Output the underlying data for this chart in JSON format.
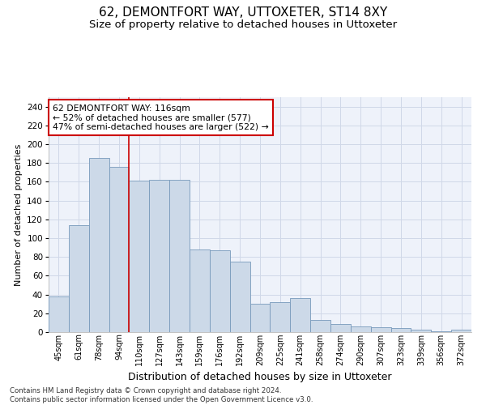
{
  "title": "62, DEMONTFORT WAY, UTTOXETER, ST14 8XY",
  "subtitle": "Size of property relative to detached houses in Uttoxeter",
  "xlabel": "Distribution of detached houses by size in Uttoxeter",
  "ylabel": "Number of detached properties",
  "categories": [
    "45sqm",
    "61sqm",
    "78sqm",
    "94sqm",
    "110sqm",
    "127sqm",
    "143sqm",
    "159sqm",
    "176sqm",
    "192sqm",
    "209sqm",
    "225sqm",
    "241sqm",
    "258sqm",
    "274sqm",
    "290sqm",
    "307sqm",
    "323sqm",
    "339sqm",
    "356sqm",
    "372sqm"
  ],
  "bar_values": [
    38,
    114,
    185,
    176,
    161,
    162,
    162,
    88,
    87,
    75,
    30,
    32,
    36,
    13,
    9,
    6,
    5,
    4,
    3,
    1,
    3
  ],
  "bar_color": "#ccd9e8",
  "bar_edge_color": "#7799bb",
  "grid_color": "#d0d8e8",
  "background_color": "#eef2fa",
  "vline_x": 3.5,
  "vline_color": "#cc0000",
  "annotation_text": "62 DEMONTFORT WAY: 116sqm\n← 52% of detached houses are smaller (577)\n47% of semi-detached houses are larger (522) →",
  "annotation_box_color": "#ffffff",
  "annotation_box_edge": "#cc0000",
  "footer": "Contains HM Land Registry data © Crown copyright and database right 2024.\nContains public sector information licensed under the Open Government Licence v3.0.",
  "ylim": [
    0,
    250
  ],
  "yticks": [
    0,
    20,
    40,
    60,
    80,
    100,
    120,
    140,
    160,
    180,
    200,
    220,
    240
  ]
}
